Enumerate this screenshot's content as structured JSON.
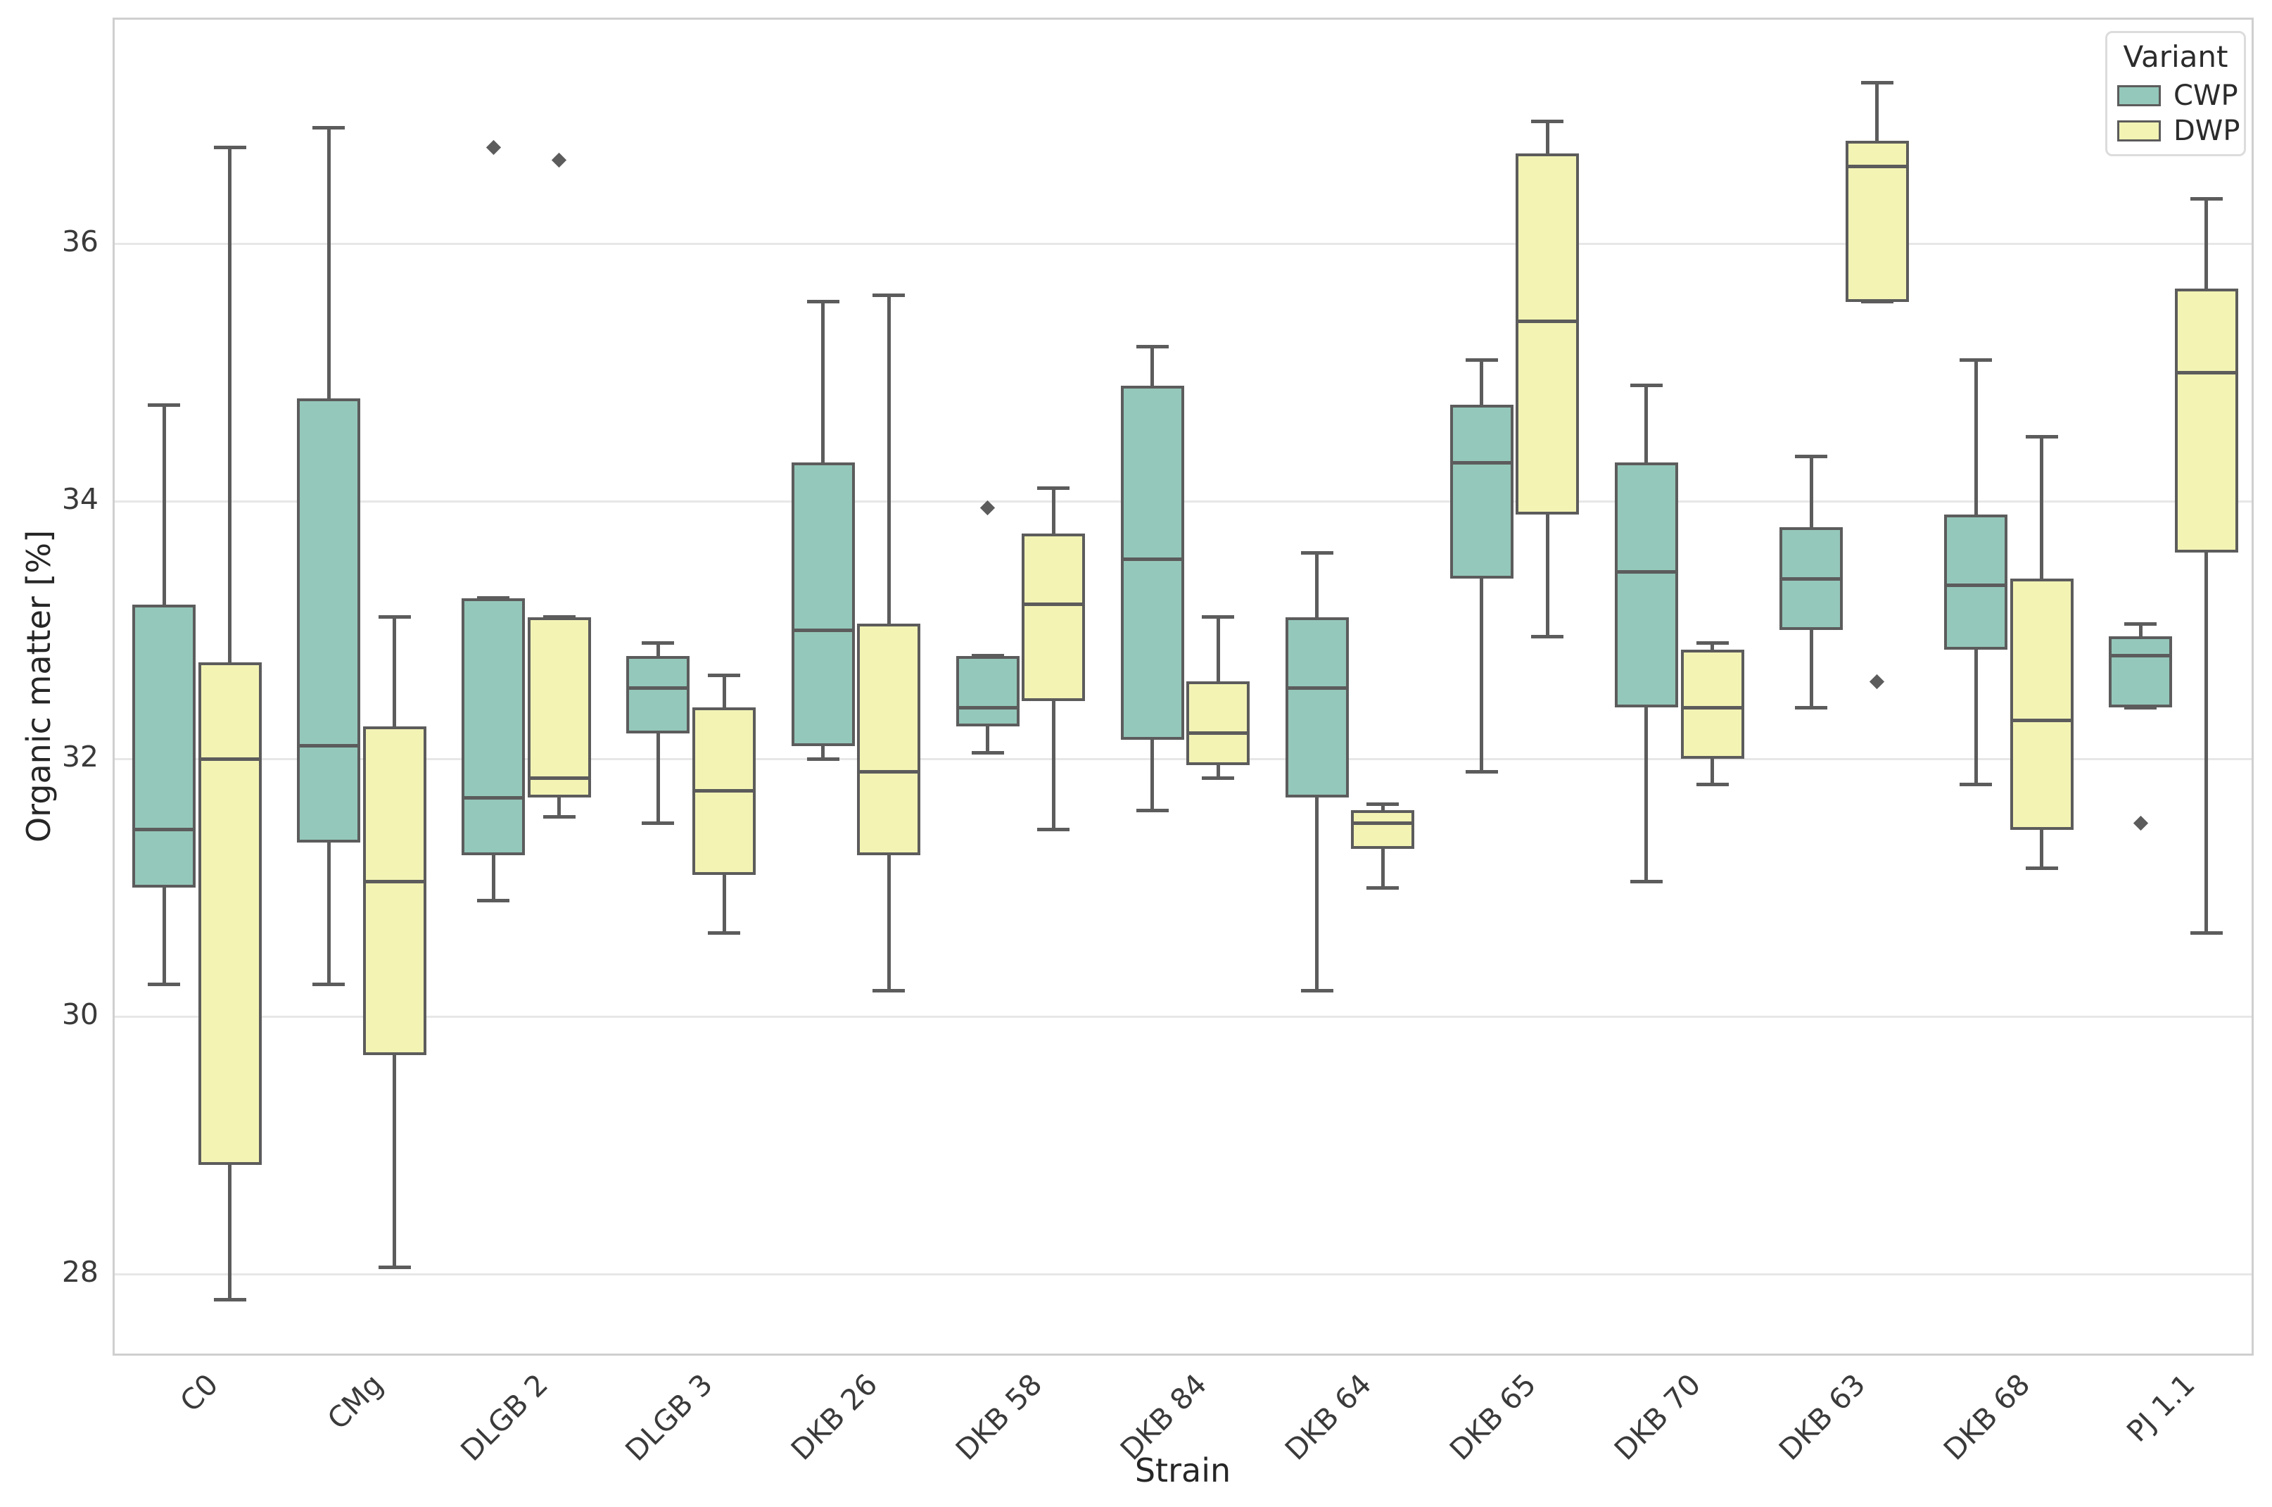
{
  "axes": {
    "ylabel": "Organic matter [%]",
    "xlabel": "Strain"
  },
  "legend": {
    "title": "Variant"
  },
  "chart_data": {
    "type": "boxplot",
    "title": "",
    "xlabel": "Strain",
    "ylabel": "Organic matter [%]",
    "ylim": [
      27.35,
      37.74
    ],
    "yticks": [
      28,
      30,
      32,
      34,
      36
    ],
    "grid": true,
    "legend_position": "upper-right",
    "categories": [
      "C0",
      "CMg",
      "DLGB 2",
      "DLGB 3",
      "DKB 26",
      "DKB 58",
      "DKB 84",
      "DKB 64",
      "DKB 65",
      "DKB 70",
      "DKB 63",
      "DKB 68",
      "PJ 1.1"
    ],
    "colors": {
      "edge": "#5c5c5c",
      "grid": "#e7e7e7",
      "spine": "#cfcfcf",
      "tick_label": "#3a3a3a"
    },
    "series": [
      {
        "name": "CWP",
        "color": "#94c8ba",
        "boxes": [
          {
            "whisker_low": 30.25,
            "q1": 31.0,
            "median": 31.45,
            "q3": 33.2,
            "whisker_high": 34.75,
            "outliers": []
          },
          {
            "whisker_low": 30.25,
            "q1": 31.35,
            "median": 32.1,
            "q3": 34.8,
            "whisker_high": 36.9,
            "outliers": []
          },
          {
            "whisker_low": 30.9,
            "q1": 31.25,
            "median": 31.7,
            "q3": 33.25,
            "whisker_high": 33.25,
            "outliers": [
              36.75
            ]
          },
          {
            "whisker_low": 31.5,
            "q1": 32.2,
            "median": 32.55,
            "q3": 32.8,
            "whisker_high": 32.9,
            "outliers": []
          },
          {
            "whisker_low": 32.0,
            "q1": 32.1,
            "median": 33.0,
            "q3": 34.3,
            "whisker_high": 35.55,
            "outliers": []
          },
          {
            "whisker_low": 32.05,
            "q1": 32.25,
            "median": 32.4,
            "q3": 32.8,
            "whisker_high": 32.8,
            "outliers": [
              33.95
            ]
          },
          {
            "whisker_low": 31.6,
            "q1": 32.15,
            "median": 33.55,
            "q3": 34.9,
            "whisker_high": 35.2,
            "outliers": []
          },
          {
            "whisker_low": 30.2,
            "q1": 31.7,
            "median": 32.55,
            "q3": 33.1,
            "whisker_high": 33.6,
            "outliers": []
          },
          {
            "whisker_low": 31.9,
            "q1": 33.4,
            "median": 34.3,
            "q3": 34.75,
            "whisker_high": 35.1,
            "outliers": []
          },
          {
            "whisker_low": 31.05,
            "q1": 32.4,
            "median": 33.45,
            "q3": 34.3,
            "whisker_high": 34.9,
            "outliers": []
          },
          {
            "whisker_low": 32.4,
            "q1": 33.0,
            "median": 33.4,
            "q3": 33.8,
            "whisker_high": 34.35,
            "outliers": []
          },
          {
            "whisker_low": 31.8,
            "q1": 32.85,
            "median": 33.35,
            "q3": 33.9,
            "whisker_high": 35.1,
            "outliers": []
          },
          {
            "whisker_low": 32.4,
            "q1": 32.4,
            "median": 32.8,
            "q3": 32.95,
            "whisker_high": 33.05,
            "outliers": [
              31.5
            ]
          }
        ]
      },
      {
        "name": "DWP",
        "color": "#f3f3b4",
        "boxes": [
          {
            "whisker_low": 27.8,
            "q1": 28.85,
            "median": 32.0,
            "q3": 32.75,
            "whisker_high": 36.75,
            "outliers": []
          },
          {
            "whisker_low": 28.05,
            "q1": 29.7,
            "median": 31.05,
            "q3": 32.25,
            "whisker_high": 33.1,
            "outliers": []
          },
          {
            "whisker_low": 31.55,
            "q1": 31.7,
            "median": 31.85,
            "q3": 33.1,
            "whisker_high": 33.1,
            "outliers": [
              36.65
            ]
          },
          {
            "whisker_low": 30.65,
            "q1": 31.1,
            "median": 31.75,
            "q3": 32.4,
            "whisker_high": 32.65,
            "outliers": []
          },
          {
            "whisker_low": 30.2,
            "q1": 31.25,
            "median": 31.9,
            "q3": 33.05,
            "whisker_high": 35.6,
            "outliers": []
          },
          {
            "whisker_low": 31.45,
            "q1": 32.45,
            "median": 33.2,
            "q3": 33.75,
            "whisker_high": 34.1,
            "outliers": []
          },
          {
            "whisker_low": 31.85,
            "q1": 31.95,
            "median": 32.2,
            "q3": 32.6,
            "whisker_high": 33.1,
            "outliers": []
          },
          {
            "whisker_low": 31.0,
            "q1": 31.3,
            "median": 31.5,
            "q3": 31.6,
            "whisker_high": 31.65,
            "outliers": []
          },
          {
            "whisker_low": 32.95,
            "q1": 33.9,
            "median": 35.4,
            "q3": 36.7,
            "whisker_high": 36.95,
            "outliers": []
          },
          {
            "whisker_low": 31.8,
            "q1": 32.0,
            "median": 32.4,
            "q3": 32.85,
            "whisker_high": 32.9,
            "outliers": []
          },
          {
            "whisker_low": 35.55,
            "q1": 35.55,
            "median": 36.6,
            "q3": 36.8,
            "whisker_high": 37.25,
            "outliers": [
              32.6
            ]
          },
          {
            "whisker_low": 31.15,
            "q1": 31.45,
            "median": 32.3,
            "q3": 33.4,
            "whisker_high": 34.5,
            "outliers": []
          },
          {
            "whisker_low": 30.65,
            "q1": 33.6,
            "median": 35.0,
            "q3": 35.65,
            "whisker_high": 36.35,
            "outliers": []
          }
        ]
      }
    ]
  }
}
